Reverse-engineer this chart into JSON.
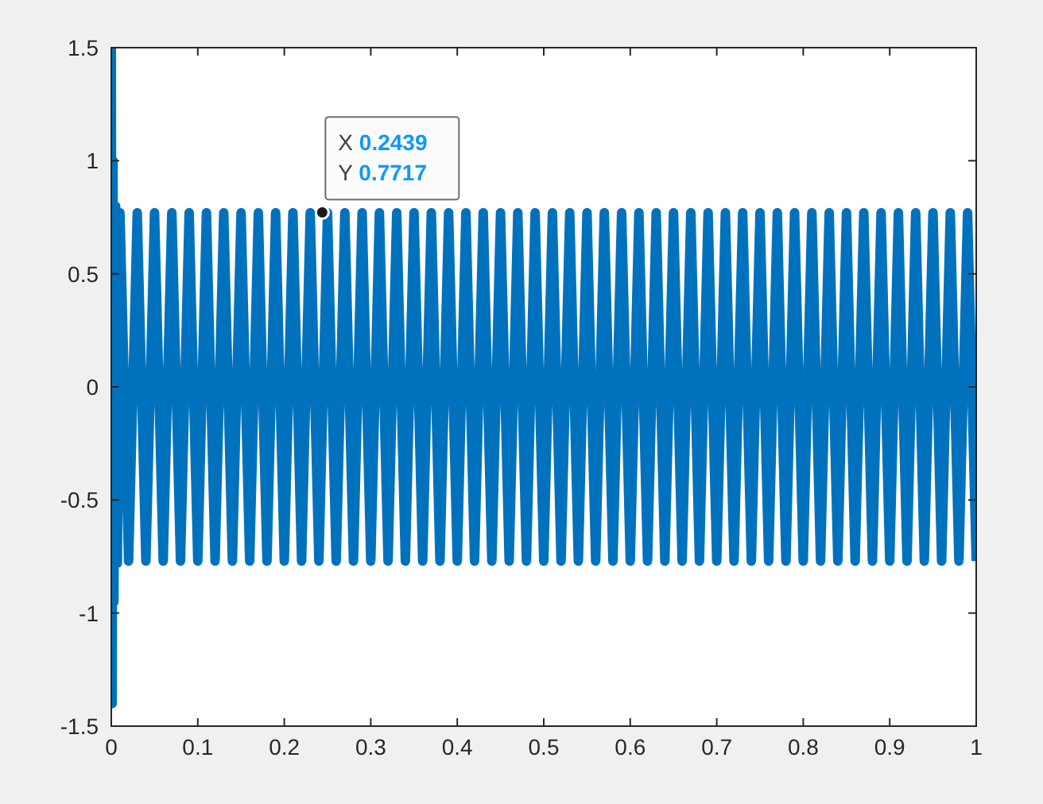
{
  "chart_data": {
    "type": "line",
    "xlim": [
      0,
      1
    ],
    "ylim": [
      -1.5,
      1.5
    ],
    "xticks": [
      0,
      0.1,
      0.2,
      0.3,
      0.4,
      0.5,
      0.6,
      0.7,
      0.8,
      0.9,
      1
    ],
    "yticks": [
      -1.5,
      -1,
      -0.5,
      0,
      0.5,
      1,
      1.5
    ],
    "grid": false,
    "marker": "none",
    "line_style": "solid",
    "series": [
      {
        "color": "#0072bd",
        "x": [
          0,
          0.001,
          0.002,
          0.003,
          0.005,
          0.007,
          0.01,
          0.02,
          0.03,
          0.04,
          0.05,
          0.06,
          0.07,
          0.08,
          0.09,
          0.1,
          0.11,
          0.12,
          0.13,
          0.14,
          0.15,
          0.16,
          0.17,
          0.18,
          0.19,
          0.2,
          0.21,
          0.22,
          0.23,
          0.24,
          0.25,
          0.26,
          0.27,
          0.28,
          0.29,
          0.3,
          0.31,
          0.32,
          0.33,
          0.34,
          0.35,
          0.36,
          0.37,
          0.38,
          0.39,
          0.4,
          0.41,
          0.42,
          0.43,
          0.44,
          0.45,
          0.46,
          0.47,
          0.48,
          0.49,
          0.5,
          0.51,
          0.52,
          0.53,
          0.54,
          0.55,
          0.56,
          0.57,
          0.58,
          0.59,
          0.6,
          0.61,
          0.62,
          0.63,
          0.64,
          0.65,
          0.66,
          0.67,
          0.68,
          0.69,
          0.7,
          0.71,
          0.72,
          0.73,
          0.74,
          0.75,
          0.76,
          0.77,
          0.78,
          0.79,
          0.8,
          0.81,
          0.82,
          0.83,
          0.84,
          0.85,
          0.86,
          0.87,
          0.88,
          0.89,
          0.9,
          0.91,
          0.92,
          0.93,
          0.94,
          0.95,
          0.96,
          0.97,
          0.98,
          0.99,
          1
        ],
        "values": [
          1.5,
          -1.4,
          1.0,
          -0.95,
          0.8,
          -0.78,
          0.77,
          -0.77,
          0.77,
          -0.77,
          0.77,
          -0.77,
          0.77,
          -0.77,
          0.77,
          -0.77,
          0.77,
          -0.77,
          0.77,
          -0.77,
          0.77,
          -0.77,
          0.77,
          -0.77,
          0.77,
          -0.77,
          0.77,
          -0.77,
          0.77,
          -0.77,
          0.77,
          -0.77,
          0.77,
          -0.77,
          0.77,
          -0.77,
          0.77,
          -0.77,
          0.77,
          -0.77,
          0.77,
          -0.77,
          0.77,
          -0.77,
          0.77,
          -0.77,
          0.77,
          -0.77,
          0.77,
          -0.77,
          0.77,
          -0.77,
          0.77,
          -0.77,
          0.77,
          -0.77,
          0.77,
          -0.77,
          0.77,
          -0.77,
          0.77,
          -0.77,
          0.77,
          -0.77,
          0.77,
          -0.77,
          0.77,
          -0.77,
          0.77,
          -0.77,
          0.77,
          -0.77,
          0.77,
          -0.77,
          0.77,
          -0.77,
          0.77,
          -0.77,
          0.77,
          -0.77,
          0.77,
          -0.77,
          0.77,
          -0.77,
          0.77,
          -0.77,
          0.77,
          -0.77,
          0.77,
          -0.77,
          0.77,
          -0.77,
          0.77,
          -0.77,
          0.77,
          -0.77,
          0.77,
          -0.77,
          0.77,
          -0.77,
          0.77,
          -0.77,
          0.77,
          -0.77,
          0.77,
          -0.77
        ]
      }
    ],
    "annotations": [
      {
        "text": "X 0.2439\nY 0.7717",
        "x": 0.2439,
        "y": 0.7717
      }
    ]
  }
}
